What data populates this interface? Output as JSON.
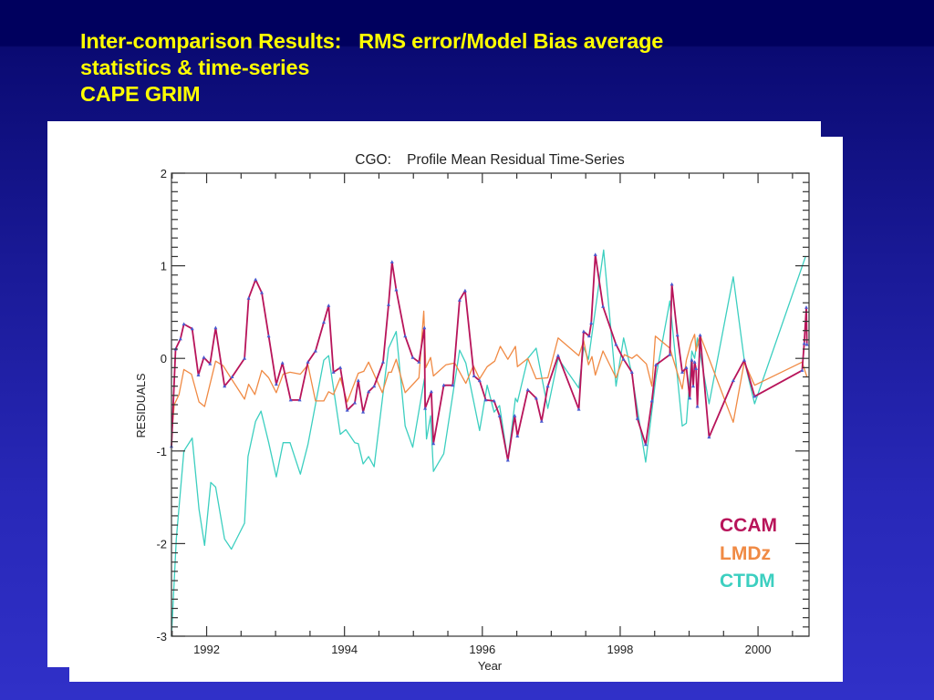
{
  "slide": {
    "title_lines": [
      "Inter-comparison Results:   RMS error/Model Bias average",
      "statistics & time-series",
      "CAPE GRIM"
    ]
  },
  "colors": {
    "title": "#ffff00",
    "CCAM": "#b8145a",
    "CCAM_marker": "#4a5ad0",
    "LMDz": "#f08a44",
    "CTDM": "#3ccfc0",
    "axis": "#333333"
  },
  "chart_data": {
    "type": "line",
    "title": "CGO:    Profile Mean Residual Time-Series",
    "xlabel": "Year",
    "ylabel": "RESIDUALS",
    "xlim": [
      1991.49,
      2000.74
    ],
    "ylim": [
      -3,
      2
    ],
    "x_ticks": [
      1992,
      1994,
      1996,
      1998,
      2000
    ],
    "x_tick_labels": [
      "1992",
      "1994",
      "1996",
      "1998",
      "2000"
    ],
    "x_minor_step": 0.5,
    "y_ticks": [
      2,
      1,
      0,
      -1,
      -2,
      -3
    ],
    "y_tick_labels": [
      "2",
      "1",
      "0",
      "-1",
      "-2",
      "-3"
    ],
    "y_minor_step": 0.1,
    "grid": false,
    "legend": {
      "position": "bottom-right",
      "entries": [
        "CCAM",
        "LMDz",
        "CTDM"
      ]
    },
    "series": [
      {
        "name": "CTDM",
        "markers": false,
        "x": [
          1991.49,
          1991.56,
          1991.67,
          1991.79,
          1991.89,
          1991.97,
          1992.06,
          1992.13,
          1992.26,
          1992.36,
          1992.55,
          1992.6,
          1992.71,
          1992.79,
          1992.9,
          1993.01,
          1993.11,
          1993.21,
          1993.36,
          1993.47,
          1993.7,
          1993.77,
          1993.94,
          1994.02,
          1994.15,
          1994.2,
          1994.27,
          1994.35,
          1994.43,
          1994.64,
          1994.75,
          1994.88,
          1994.99,
          1995.16,
          1995.19,
          1995.25,
          1995.29,
          1995.44,
          1995.67,
          1995.76,
          1995.96,
          1996.07,
          1996.17,
          1996.25,
          1996.37,
          1996.48,
          1996.51,
          1996.66,
          1996.78,
          1996.95,
          1997.1,
          1997.4,
          1997.47,
          1997.54,
          1997.76,
          1997.94,
          1998.05,
          1998.17,
          1998.37,
          1998.52,
          1998.72,
          1998.9,
          1998.96,
          1999.04,
          1999.08,
          1999.12,
          1999.29,
          1999.64,
          1999.8,
          1999.95,
          2000.69
        ],
        "y": [
          -3.0,
          -1.95,
          -1.0,
          -0.86,
          -1.63,
          -2.02,
          -1.34,
          -1.39,
          -1.95,
          -2.06,
          -1.78,
          -1.06,
          -0.68,
          -0.57,
          -0.91,
          -1.28,
          -0.91,
          -0.91,
          -1.25,
          -0.93,
          -0.02,
          0.03,
          -0.82,
          -0.77,
          -0.91,
          -0.92,
          -1.14,
          -1.06,
          -1.17,
          0.11,
          0.29,
          -0.73,
          -0.96,
          -0.22,
          -0.87,
          -0.62,
          -1.22,
          -1.03,
          0.09,
          -0.05,
          -0.78,
          -0.29,
          -0.58,
          -0.51,
          -1.1,
          -0.43,
          -0.47,
          0.0,
          0.11,
          -0.54,
          0.0,
          -0.32,
          0.12,
          -0.01,
          1.17,
          -0.3,
          0.22,
          -0.17,
          -1.12,
          -0.2,
          0.62,
          -0.73,
          -0.7,
          0.08,
          0.0,
          0.22,
          -0.49,
          0.88,
          -0.02,
          -0.49,
          1.1
        ]
      },
      {
        "name": "LMDz",
        "markers": false,
        "x": [
          1991.49,
          1991.53,
          1991.6,
          1991.67,
          1991.78,
          1991.89,
          1991.97,
          1992.13,
          1992.24,
          1992.35,
          1992.55,
          1992.61,
          1992.7,
          1992.8,
          1992.9,
          1993.01,
          1993.11,
          1993.21,
          1993.36,
          1993.47,
          1993.58,
          1993.7,
          1993.77,
          1993.84,
          1993.94,
          1994.04,
          1994.2,
          1994.28,
          1994.35,
          1994.55,
          1994.64,
          1994.68,
          1994.75,
          1994.88,
          1995.08,
          1995.15,
          1995.18,
          1995.25,
          1995.29,
          1995.47,
          1995.6,
          1995.76,
          1995.87,
          1995.96,
          1996.07,
          1996.18,
          1996.26,
          1996.37,
          1996.48,
          1996.51,
          1996.66,
          1996.78,
          1996.95,
          1997.1,
          1997.4,
          1997.47,
          1997.54,
          1997.59,
          1997.64,
          1997.75,
          1997.94,
          1998.06,
          1998.17,
          1998.24,
          1998.38,
          1998.46,
          1998.51,
          1998.72,
          1998.9,
          1998.96,
          1999.03,
          1999.08,
          1999.1,
          1999.15,
          1999.16,
          1999.64,
          1999.8,
          1999.95,
          2000.64,
          2000.71
        ],
        "y": [
          -0.85,
          -0.5,
          -0.39,
          -0.12,
          -0.17,
          -0.47,
          -0.52,
          -0.03,
          -0.08,
          -0.21,
          -0.44,
          -0.28,
          -0.39,
          -0.13,
          -0.21,
          -0.37,
          -0.17,
          -0.15,
          -0.17,
          -0.07,
          -0.46,
          -0.46,
          -0.36,
          -0.39,
          -0.21,
          -0.47,
          -0.16,
          -0.14,
          -0.04,
          -0.37,
          -0.15,
          -0.15,
          -0.01,
          -0.37,
          -0.21,
          0.51,
          -0.1,
          0.01,
          -0.19,
          -0.07,
          -0.05,
          -0.27,
          -0.08,
          -0.22,
          -0.09,
          -0.03,
          0.13,
          -0.01,
          0.13,
          -0.09,
          0.0,
          -0.22,
          -0.21,
          0.22,
          0.03,
          0.19,
          -0.07,
          0.02,
          -0.18,
          0.08,
          -0.21,
          0.04,
          0.0,
          0.04,
          -0.06,
          -0.3,
          0.24,
          0.11,
          -0.33,
          -0.02,
          0.17,
          0.26,
          0.08,
          0.22,
          0.25,
          -0.69,
          -0.04,
          -0.29,
          -0.04,
          -0.2
        ]
      },
      {
        "name": "CCAM",
        "markers": true,
        "x": [
          1991.49,
          1991.55,
          1991.62,
          1991.67,
          1991.79,
          1991.88,
          1991.96,
          1992.05,
          1992.13,
          1992.26,
          1992.37,
          1992.55,
          1992.61,
          1992.71,
          1992.8,
          1992.9,
          1993.01,
          1993.1,
          1993.22,
          1993.35,
          1993.47,
          1993.58,
          1993.7,
          1993.77,
          1993.84,
          1993.94,
          1994.04,
          1994.15,
          1994.2,
          1994.27,
          1994.35,
          1994.43,
          1994.56,
          1994.64,
          1994.69,
          1994.75,
          1994.88,
          1994.99,
          1995.08,
          1995.16,
          1995.17,
          1995.26,
          1995.29,
          1995.44,
          1995.57,
          1995.67,
          1995.75,
          1995.88,
          1995.96,
          1996.05,
          1996.17,
          1996.25,
          1996.37,
          1996.47,
          1996.51,
          1996.66,
          1996.78,
          1996.86,
          1996.95,
          1997.1,
          1997.4,
          1997.47,
          1997.55,
          1997.58,
          1997.64,
          1997.75,
          1997.94,
          1998.05,
          1998.17,
          1998.25,
          1998.37,
          1998.46,
          1998.52,
          1998.72,
          1998.75,
          1998.83,
          1998.9,
          1998.96,
          1999.01,
          1999.04,
          1999.06,
          1999.08,
          1999.1,
          1999.12,
          1999.16,
          1999.29,
          1999.64,
          1999.8,
          1999.95,
          2000.64,
          2000.67,
          2000.7,
          2000.71
        ],
        "y": [
          -0.95,
          0.1,
          0.21,
          0.37,
          0.32,
          -0.18,
          0.01,
          -0.06,
          0.33,
          -0.3,
          -0.2,
          0.0,
          0.65,
          0.85,
          0.71,
          0.24,
          -0.28,
          -0.05,
          -0.45,
          -0.45,
          -0.04,
          0.08,
          0.39,
          0.57,
          -0.15,
          -0.1,
          -0.56,
          -0.48,
          -0.24,
          -0.58,
          -0.36,
          -0.3,
          -0.04,
          0.58,
          1.04,
          0.74,
          0.24,
          0.01,
          -0.04,
          0.33,
          -0.54,
          -0.36,
          -0.92,
          -0.29,
          -0.29,
          0.63,
          0.73,
          -0.19,
          -0.24,
          -0.45,
          -0.46,
          -0.62,
          -1.1,
          -0.62,
          -0.84,
          -0.34,
          -0.43,
          -0.68,
          -0.3,
          0.03,
          -0.55,
          0.29,
          0.24,
          0.38,
          1.12,
          0.56,
          0.15,
          -0.01,
          -0.15,
          -0.65,
          -0.93,
          -0.46,
          -0.07,
          0.04,
          0.8,
          0.25,
          -0.15,
          -0.1,
          -0.43,
          -0.02,
          -0.3,
          -0.04,
          -0.11,
          -0.52,
          0.25,
          -0.85,
          -0.24,
          -0.02,
          -0.41,
          -0.13,
          0.16,
          0.55,
          0.15
        ]
      }
    ]
  }
}
